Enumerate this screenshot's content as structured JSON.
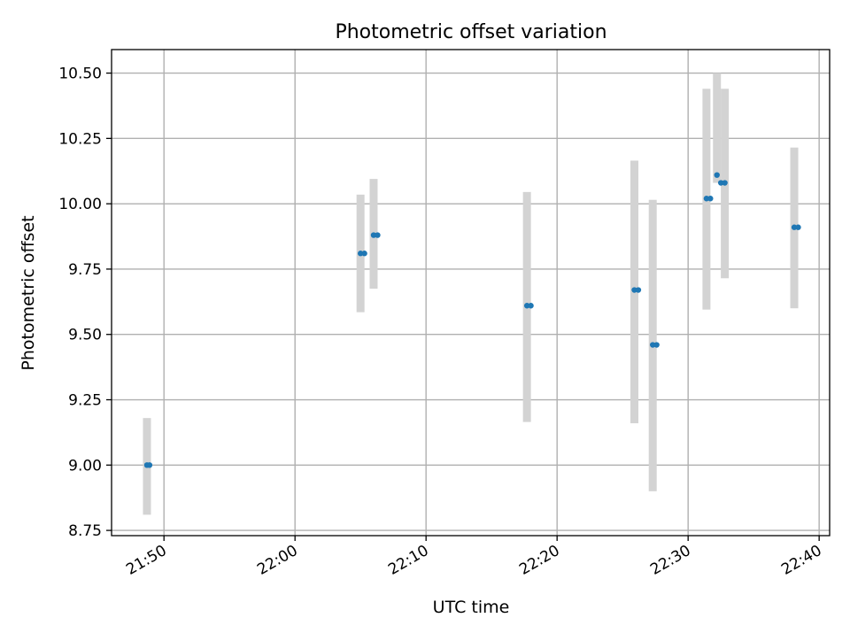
{
  "chart_data": {
    "type": "scatter",
    "title": "Photometric offset variation",
    "xlabel": "UTC time",
    "ylabel": "Photometric offset",
    "x_tick_labels": [
      "21:50",
      "22:00",
      "22:10",
      "22:20",
      "22:30",
      "22:40"
    ],
    "x_ticks": [
      "21:50",
      "22:00",
      "22:10",
      "22:20",
      "22:30",
      "22:40"
    ],
    "y_tick_labels": [
      "8.75",
      "9.00",
      "9.25",
      "9.50",
      "9.75",
      "10.00",
      "10.25",
      "10.50"
    ],
    "y_ticks": [
      8.75,
      9.0,
      9.25,
      9.5,
      9.75,
      10.0,
      10.25,
      10.5
    ],
    "xlim": [
      "21:46",
      "22:40.8"
    ],
    "ylim": [
      8.73,
      10.59
    ],
    "grid": true,
    "colors": {
      "point": "#1f77b4",
      "errorbar": "#d3d3d3",
      "grid": "#b0b0b0"
    },
    "series": [
      {
        "x": [
          "21:48.7",
          "21:48.9",
          "22:05.0",
          "22:05.3",
          "22:06.0",
          "22:06.3",
          "22:17.7",
          "22:18.0",
          "22:25.9",
          "22:26.2",
          "22:27.3",
          "22:27.6",
          "22:31.4",
          "22:31.7",
          "22:32.2",
          "22:32.5",
          "22:32.8",
          "22:38.1",
          "22:38.4"
        ],
        "y": [
          9.0,
          9.0,
          9.81,
          9.81,
          9.88,
          9.88,
          9.61,
          9.61,
          9.67,
          9.67,
          9.46,
          9.46,
          10.02,
          10.02,
          10.11,
          10.08,
          10.08,
          9.91,
          9.91
        ]
      }
    ],
    "error_bars": [
      {
        "x": "21:48.7",
        "low": 8.81,
        "high": 9.18
      },
      {
        "x": "22:05.0",
        "low": 9.585,
        "high": 10.035
      },
      {
        "x": "22:06.0",
        "low": 9.675,
        "high": 10.095
      },
      {
        "x": "22:17.7",
        "low": 9.165,
        "high": 10.045
      },
      {
        "x": "22:25.9",
        "low": 9.16,
        "high": 10.165
      },
      {
        "x": "22:27.3",
        "low": 8.9,
        "high": 10.015
      },
      {
        "x": "22:31.4",
        "low": 9.595,
        "high": 10.44
      },
      {
        "x": "22:32.2",
        "low": 10.08,
        "high": 10.5
      },
      {
        "x": "22:32.8",
        "low": 9.715,
        "high": 10.44
      },
      {
        "x": "22:38.1",
        "low": 9.6,
        "high": 10.215
      }
    ]
  }
}
